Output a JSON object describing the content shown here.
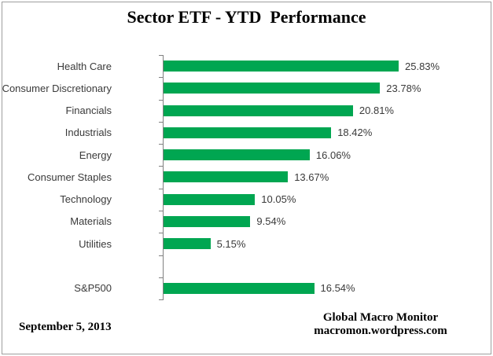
{
  "title": "Sector ETF - YTD  Performance",
  "footer": {
    "date": "September 5, 2013",
    "source_line1": "Global Macro Monitor",
    "source_line2": "macromon.wordpress.com"
  },
  "colors": {
    "bar": "#00A651",
    "axis": "#808080",
    "label_text": "#3A3A3A",
    "title_text": "#000000",
    "frame_border": "#9E9E9E"
  },
  "chart_data": {
    "type": "bar",
    "orientation": "horizontal",
    "title": "Sector ETF - YTD  Performance",
    "categories": [
      "Health Care",
      "Consumer Discretionary",
      "Financials",
      "Industrials",
      "Energy",
      "Consumer Staples",
      "Technology",
      "Materials",
      "Utilities",
      "",
      "S&P500"
    ],
    "values": [
      25.83,
      23.78,
      20.81,
      18.42,
      16.06,
      13.67,
      10.05,
      9.54,
      5.15,
      null,
      16.54
    ],
    "data_labels": [
      "25.83%",
      "23.78%",
      "20.81%",
      "18.42%",
      "16.06%",
      "13.67%",
      "10.05%",
      "9.54%",
      "5.15%",
      null,
      "16.54%"
    ],
    "xlim": [
      0,
      26.5
    ],
    "grid": false,
    "legend": false,
    "value_axis_visible": false,
    "bar_color": "#00A651"
  }
}
